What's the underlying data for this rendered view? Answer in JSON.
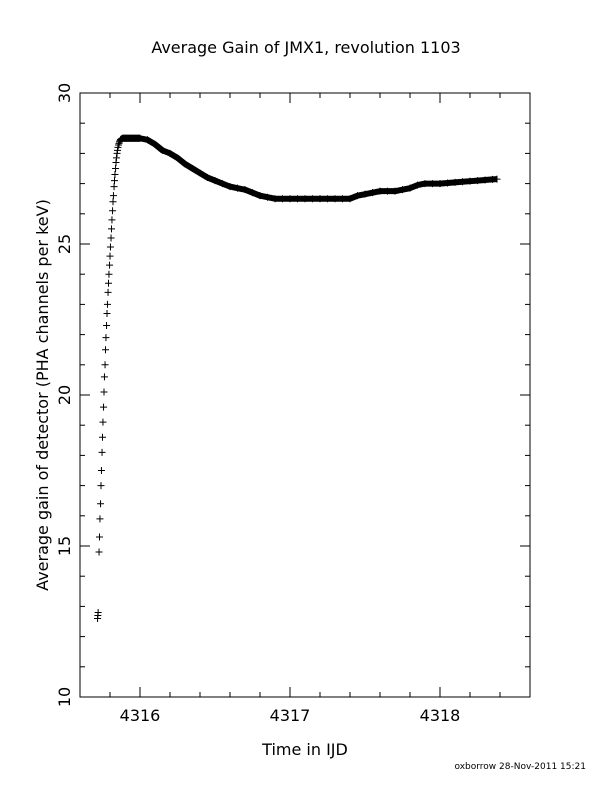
{
  "chart_data": {
    "type": "scatter",
    "title": "Average Gain of JMX1, revolution 1103",
    "xlabel": "Time in IJD",
    "ylabel": "Average gain of detector (PHA channels per keV)",
    "xlim": [
      4315.6,
      4318.6
    ],
    "ylim": [
      10,
      30
    ],
    "xticks": [
      4316,
      4317,
      4318
    ],
    "yticks": [
      10,
      15,
      20,
      25,
      30
    ],
    "marker": "plus",
    "grid": false,
    "footer": "oxborrow 28-Nov-2011 15:21",
    "series": [
      {
        "x": [
          4315.717,
          4315.719,
          4315.721,
          4315.727,
          4315.73,
          4315.733,
          4315.737,
          4315.74,
          4315.743,
          4315.747,
          4315.75,
          4315.753,
          4315.757,
          4315.76,
          4315.763,
          4315.767,
          4315.77,
          4315.773,
          4315.777,
          4315.78,
          4315.783,
          4315.787,
          4315.79,
          4315.793,
          4315.797,
          4315.8,
          4315.803,
          4315.807,
          4315.81,
          4315.813,
          4315.817,
          4315.82,
          4315.823,
          4315.827,
          4315.83,
          4315.833,
          4315.837,
          4315.84,
          4315.843,
          4315.847,
          4315.85,
          4315.853,
          4315.857,
          4315.86,
          4315.863,
          4315.867,
          4315.87,
          4315.873,
          4315.877,
          4315.88,
          4315.883,
          4315.887,
          4315.89,
          4315.893,
          4315.897,
          4315.9,
          4315.903,
          4315.907,
          4315.91,
          4315.913,
          4315.917,
          4315.92,
          4315.923,
          4315.927,
          4315.93,
          4315.933,
          4315.937,
          4315.94,
          4315.943,
          4315.947,
          4315.95,
          4315.953,
          4315.957,
          4315.96,
          4315.963,
          4315.967,
          4315.97,
          4315.973,
          4315.977,
          4315.98,
          4315.983,
          4315.987,
          4315.99,
          4315.993,
          4315.997,
          4316.0,
          4316.05,
          4316.1,
          4316.15,
          4316.2,
          4316.25,
          4316.3,
          4316.35,
          4316.4,
          4316.45,
          4316.5,
          4316.55,
          4316.6,
          4316.65,
          4316.7,
          4316.75,
          4316.8,
          4316.85,
          4316.9,
          4316.95,
          4317.0,
          4317.05,
          4317.1,
          4317.15,
          4317.2,
          4317.25,
          4317.3,
          4317.35,
          4317.4,
          4317.45,
          4317.5,
          4317.55,
          4317.6,
          4317.65,
          4317.7,
          4317.75,
          4317.8,
          4317.85,
          4317.9,
          4317.95,
          4318.0,
          4318.05,
          4318.1,
          4318.15,
          4318.2,
          4318.25,
          4318.3,
          4318.35,
          4318.38
        ],
        "y": [
          12.6,
          12.7,
          12.8,
          14.8,
          15.3,
          15.9,
          16.4,
          17.0,
          17.5,
          18.1,
          18.6,
          19.1,
          19.6,
          20.1,
          20.6,
          21.0,
          21.5,
          21.9,
          22.3,
          22.7,
          23.0,
          23.4,
          23.7,
          24.0,
          24.3,
          24.6,
          24.9,
          25.2,
          25.5,
          25.8,
          26.1,
          26.4,
          26.6,
          26.9,
          27.1,
          27.3,
          27.5,
          27.7,
          27.85,
          28.0,
          28.1,
          28.2,
          28.28,
          28.33,
          28.38,
          28.42,
          28.45,
          28.47,
          28.48,
          28.49,
          28.5,
          28.5,
          28.5,
          28.5,
          28.5,
          28.5,
          28.5,
          28.5,
          28.5,
          28.5,
          28.5,
          28.5,
          28.5,
          28.5,
          28.5,
          28.5,
          28.5,
          28.5,
          28.5,
          28.5,
          28.5,
          28.5,
          28.5,
          28.5,
          28.5,
          28.5,
          28.5,
          28.5,
          28.5,
          28.5,
          28.5,
          28.5,
          28.5,
          28.5,
          28.5,
          28.5,
          28.45,
          28.3,
          28.1,
          28.0,
          27.85,
          27.65,
          27.5,
          27.35,
          27.2,
          27.1,
          27.0,
          26.9,
          26.85,
          26.8,
          26.7,
          26.6,
          26.55,
          26.5,
          26.5,
          26.5,
          26.5,
          26.5,
          26.5,
          26.5,
          26.5,
          26.5,
          26.5,
          26.5,
          26.6,
          26.65,
          26.7,
          26.75,
          26.75,
          26.75,
          26.8,
          26.85,
          26.95,
          27.0,
          27.0,
          27.0,
          27.02,
          27.04,
          27.06,
          27.08,
          27.1,
          27.12,
          27.14,
          27.15
        ]
      }
    ]
  }
}
